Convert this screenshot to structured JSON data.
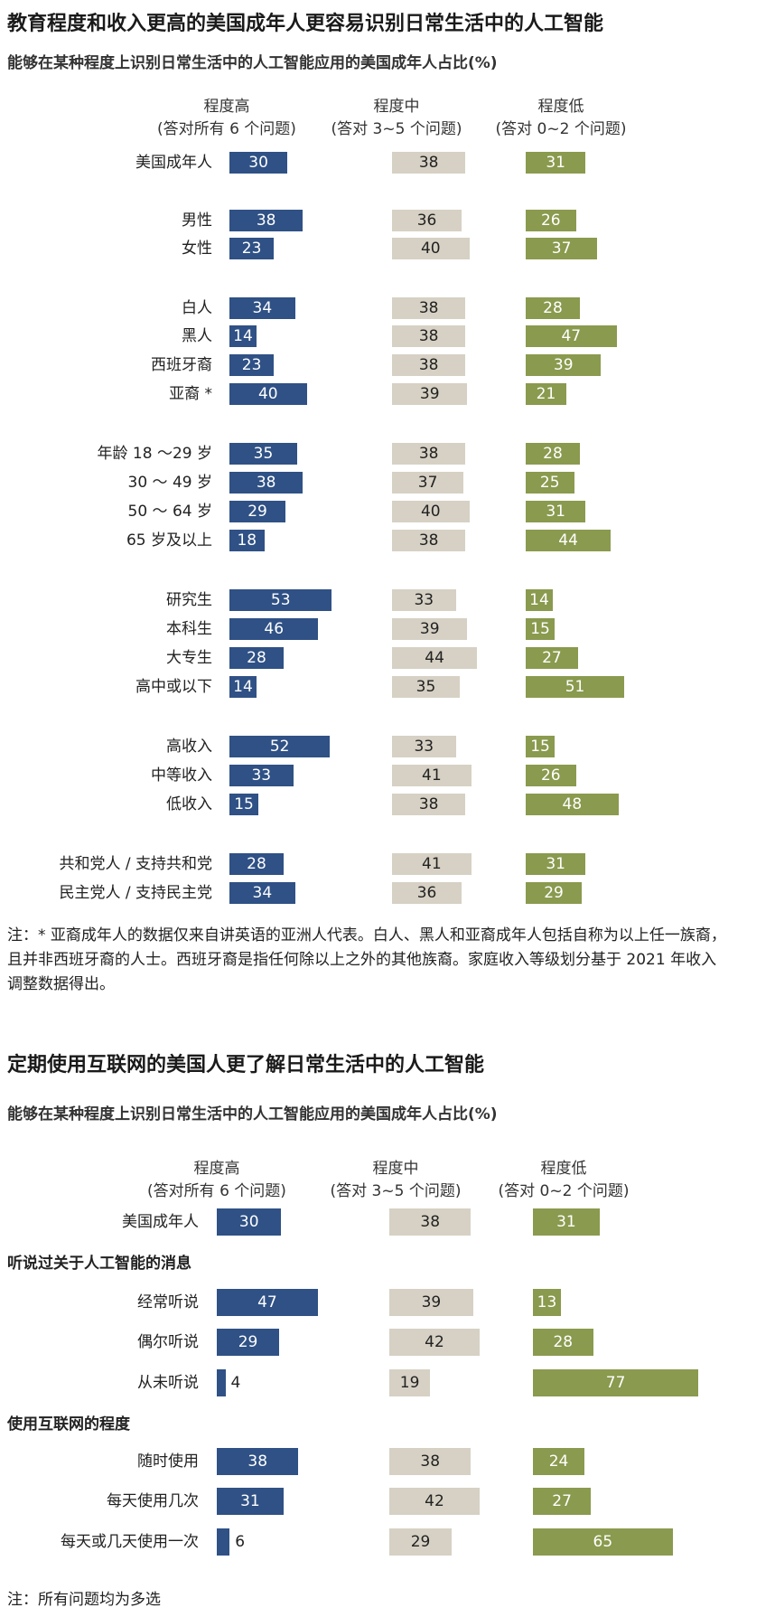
{
  "chart1": {
    "title": "教育程度和收入更高的美国成年人更容易识别日常生活中的人工智能",
    "subtitle": "能够在某种程度上识别日常生活中的人工智能应用的美国成年人占比(%)",
    "columns": [
      {
        "name": "程度高",
        "sub": "(答对所有 6 个问题)"
      },
      {
        "name": "程度中",
        "sub": "(答对 3~5 个问题)"
      },
      {
        "name": "程度低",
        "sub": "(答对 0~2 个问题)"
      }
    ],
    "note": "注：* 亚裔成年人的数据仅来自讲英语的亚洲人代表。白人、黑人和亚裔成年人包括自称为以上任一族裔，且并非西班牙裔的人士。西班牙裔是指任何除以上之外的其他族裔。家庭收入等级划分基于 2021 年收入调整数据得出。"
  },
  "chart2": {
    "title": "定期使用互联网的美国人更了解日常生活中的人工智能",
    "subtitle": "能够在某种程度上识别日常生活中的人工智能应用的美国成年人占比(%)",
    "columns": [
      {
        "name": "程度高",
        "sub": "(答对所有 6 个问题)"
      },
      {
        "name": "程度中",
        "sub": "(答对 3~5 个问题)"
      },
      {
        "name": "程度低",
        "sub": "(答对 0~2 个问题)"
      }
    ],
    "groups": [
      "听说过关于人工智能的消息",
      "使用互联网的程度"
    ],
    "note": "注：所有问题均为多选"
  },
  "colors": {
    "high": "#2f5185",
    "mid": "#d6d1c4",
    "low": "#8a9a4e"
  },
  "chart_data": [
    {
      "type": "bar",
      "orientation": "horizontal",
      "layout": "small-multiples",
      "title": "教育程度和收入更高的美国成年人更容易识别日常生活中的人工智能",
      "categories": [
        "美国成年人",
        "男性",
        "女性",
        "白人",
        "黑人",
        "西班牙裔",
        "亚裔 *",
        "年龄 18 ～29 岁",
        "30 ～ 49 岁",
        "50 ～ 64 岁",
        "65 岁及以上",
        "研究生",
        "本科生",
        "大专生",
        "高中或以下",
        "高收入",
        "中等收入",
        "低收入",
        "共和党人 / 支持共和党",
        "民主党人 / 支持民主党"
      ],
      "series": [
        {
          "name": "程度高",
          "values": [
            30,
            38,
            23,
            34,
            14,
            23,
            40,
            35,
            38,
            29,
            18,
            53,
            46,
            28,
            14,
            52,
            33,
            15,
            28,
            34
          ]
        },
        {
          "name": "程度中",
          "values": [
            38,
            36,
            40,
            38,
            38,
            38,
            39,
            38,
            37,
            40,
            38,
            33,
            39,
            44,
            35,
            33,
            41,
            38,
            41,
            36
          ]
        },
        {
          "name": "程度低",
          "values": [
            31,
            26,
            37,
            28,
            47,
            39,
            21,
            28,
            25,
            31,
            44,
            14,
            15,
            27,
            51,
            15,
            26,
            48,
            31,
            29
          ]
        }
      ]
    },
    {
      "type": "bar",
      "orientation": "horizontal",
      "layout": "small-multiples",
      "title": "定期使用互联网的美国人更了解日常生活中的人工智能",
      "categories": [
        "美国成年人",
        "经常听说",
        "偶尔听说",
        "从未听说",
        "随时使用",
        "每天使用几次",
        "每天或几天使用一次"
      ],
      "series": [
        {
          "name": "程度高",
          "values": [
            30,
            47,
            29,
            4,
            38,
            31,
            6
          ]
        },
        {
          "name": "程度中",
          "values": [
            38,
            39,
            42,
            19,
            38,
            42,
            29
          ]
        },
        {
          "name": "程度低",
          "values": [
            31,
            13,
            28,
            77,
            24,
            27,
            65
          ]
        }
      ]
    }
  ]
}
